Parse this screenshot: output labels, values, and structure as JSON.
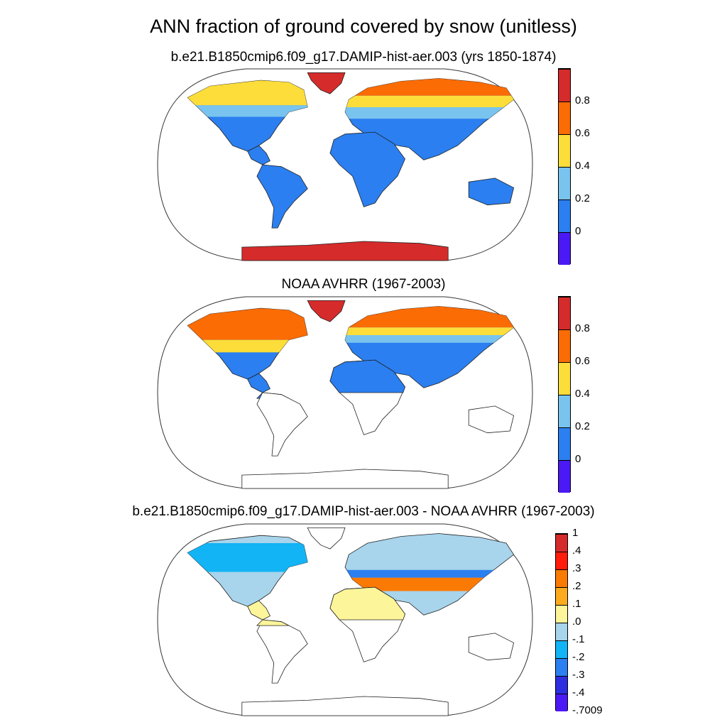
{
  "title": "ANN fraction of ground covered by snow (unitless)",
  "panels": [
    {
      "subtitle": "b.e21.B1850cmip6.f09_g17.DAMIP-hist-aer.003 (yrs 1850-1874)",
      "kind": "model"
    },
    {
      "subtitle": "NOAA AVHRR (1967-2003)",
      "kind": "obs"
    },
    {
      "subtitle": "b.e21.B1850cmip6.f09_g17.DAMIP-hist-aer.003 - NOAA AVHRR (1967-2003)",
      "kind": "diff"
    }
  ],
  "colorbars": {
    "abs": {
      "colors": [
        "#4b19f5",
        "#2b7ff0",
        "#79c4ee",
        "#fcdd3a",
        "#fb6c05",
        "#d62b2b"
      ],
      "labels": [
        "0",
        "0.2",
        "0.4",
        "0.6",
        "0.8"
      ]
    },
    "diff": {
      "colors": [
        "#4b19f5",
        "#2c2ee0",
        "#2b7ff0",
        "#12b4f5",
        "#a8d4ec",
        "#fdf59a",
        "#fcab1e",
        "#fb7a04",
        "#ff1c0c",
        "#d62b2b"
      ],
      "labels": [
        "-.7009",
        "-.4",
        "-.3",
        "-.2",
        "-.1",
        ".0",
        ".1",
        ".2",
        ".3",
        ".4",
        "1"
      ]
    }
  }
}
